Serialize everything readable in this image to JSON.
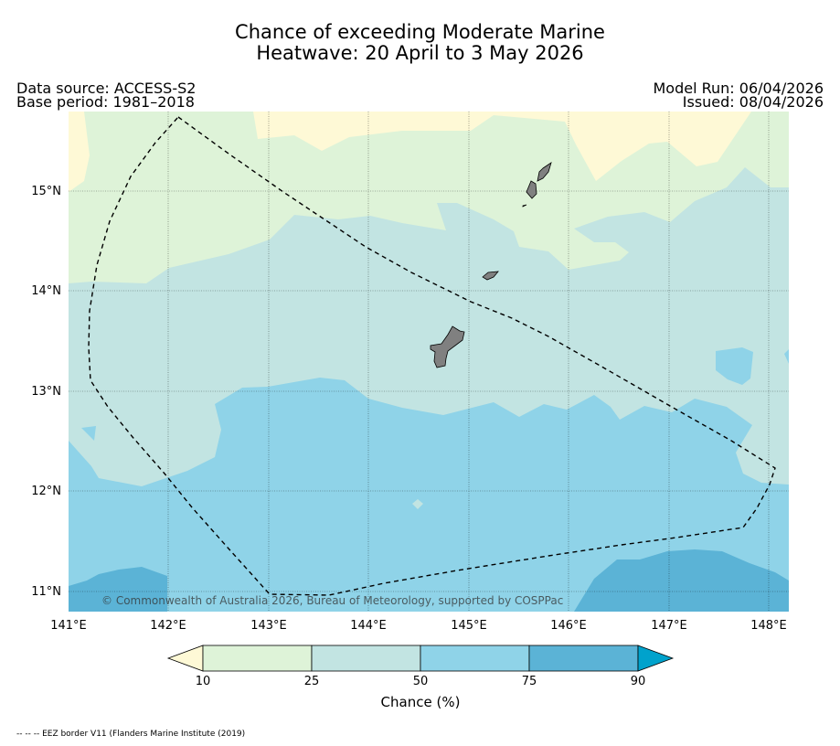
{
  "title": {
    "line1": "Chance of exceeding Moderate Marine",
    "line2": "Heatwave: 20 April to 3 May 2026"
  },
  "info": {
    "source": "Data source: ACCESS-S2",
    "base_period": "Base period: 1981–2018",
    "model_run": "Model Run: 06/04/2026",
    "issued": "Issued: 08/04/2026"
  },
  "map": {
    "copyright": "© Commonwealth of Australia 2026, Bureau of Meteorology, supported by COSPPac",
    "lon_labels": [
      "141°E",
      "142°E",
      "143°E",
      "144°E",
      "145°E",
      "146°E",
      "147°E",
      "148°E"
    ],
    "lat_labels": [
      "15°N",
      "14°N",
      "13°N",
      "12°N",
      "11°N"
    ],
    "lon_range": [
      141,
      148.2
    ],
    "lat_range": [
      10.8,
      15.8
    ],
    "colors": {
      "lt10": "#fef9d6",
      "c10_25": "#def3d8",
      "c25_50": "#c2e4e2",
      "c50_75": "#8fd3e8",
      "c75_90": "#5bb3d6",
      "gt90": "#00a2cc",
      "land": "#808080",
      "eez": "#000000"
    }
  },
  "colorbar": {
    "ticks": [
      "10",
      "25",
      "50",
      "75",
      "90"
    ],
    "label": "Chance (%)"
  },
  "footnote": "-- -- -- EEZ border V11 (Flanders Marine Institute (2019)"
}
